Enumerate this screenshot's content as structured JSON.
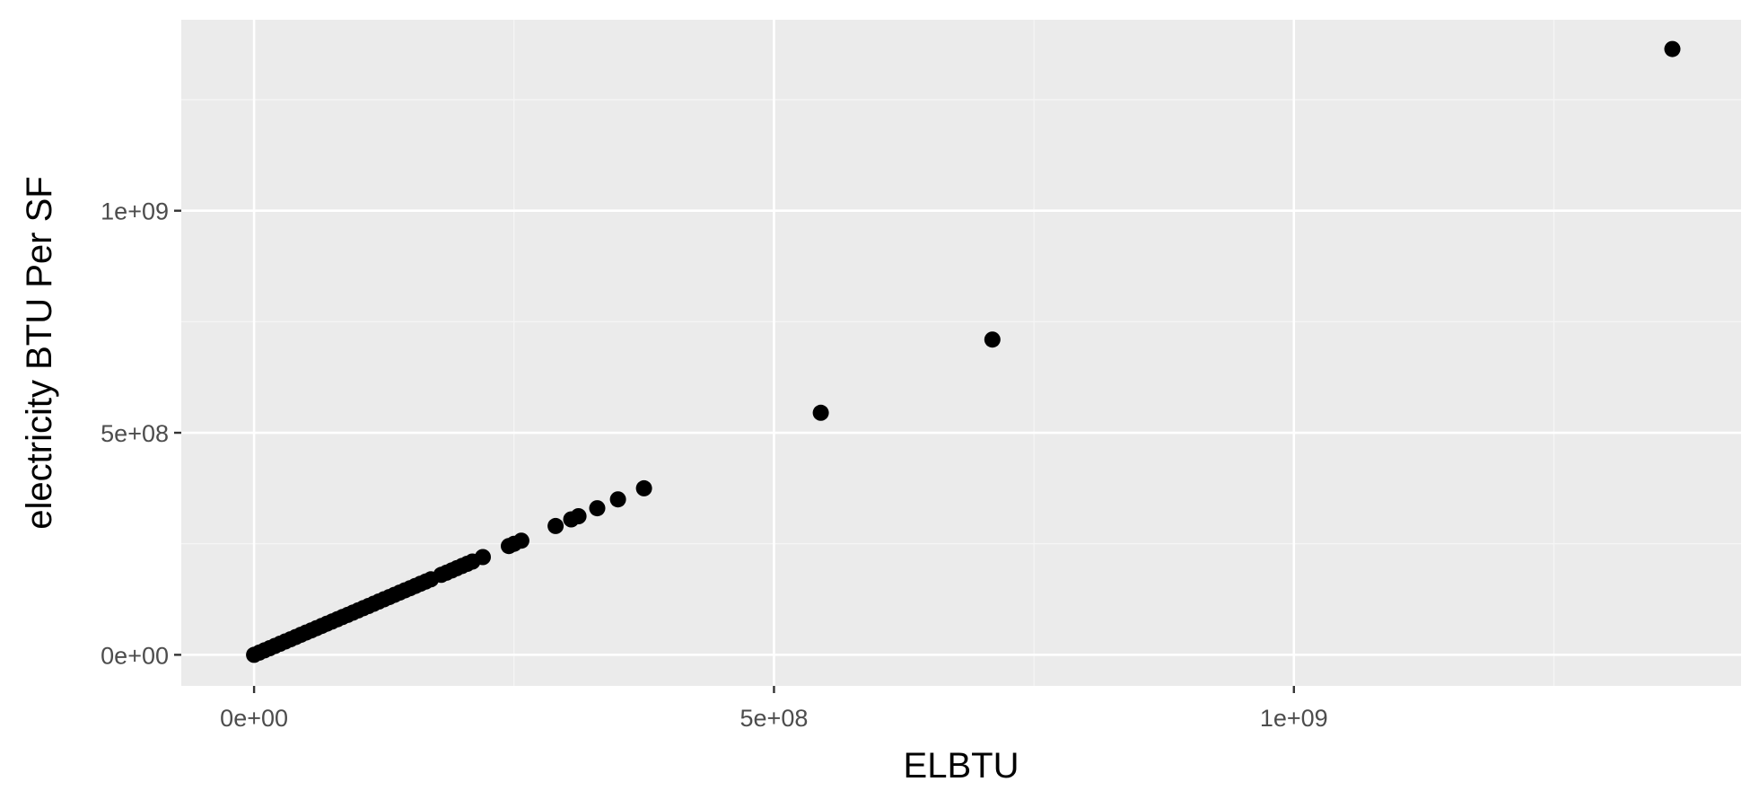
{
  "colors": {
    "panel_background": "#ebebeb",
    "grid_major": "#ffffff",
    "grid_minor": "#f5f5f5",
    "point": "#000000",
    "tick": "#333333",
    "tick_label": "#4d4d4d"
  },
  "chart_data": {
    "type": "scatter",
    "title": "",
    "xlabel": "ELBTU",
    "ylabel": "electricity BTU Per SF",
    "xlim": [
      -70000000,
      1430000000
    ],
    "ylim": [
      -70000000,
      1430000000
    ],
    "x_ticks": [
      {
        "value": 0,
        "label": "0e+00"
      },
      {
        "value": 500000000,
        "label": "5e+08"
      },
      {
        "value": 1000000000,
        "label": "1e+09"
      }
    ],
    "y_ticks": [
      {
        "value": 0,
        "label": "0e+00"
      },
      {
        "value": 500000000,
        "label": "5e+08"
      },
      {
        "value": 1000000000,
        "label": "1e+09"
      }
    ],
    "x_minor_breaks": [
      250000000,
      750000000,
      1250000000
    ],
    "y_minor_breaks": [
      250000000,
      750000000,
      1250000000
    ],
    "grid": true,
    "legend": "none",
    "series": [
      {
        "x": [
          0,
          5000000,
          10000000,
          15000000,
          20000000,
          25000000,
          30000000,
          35000000,
          40000000,
          45000000,
          50000000,
          55000000,
          60000000,
          65000000,
          70000000,
          75000000,
          80000000,
          85000000,
          90000000,
          95000000,
          100000000,
          105000000,
          110000000,
          115000000,
          120000000,
          125000000,
          130000000,
          135000000,
          140000000,
          145000000,
          150000000,
          155000000,
          160000000,
          165000000,
          170000000,
          180000000,
          185000000,
          190000000,
          195000000,
          200000000,
          205000000,
          210000000,
          220000000,
          245000000,
          250000000,
          257000000,
          290000000,
          305000000,
          312000000,
          330000000,
          350000000,
          375000000,
          545000000,
          710000000,
          1364000000
        ],
        "y": [
          0,
          5000000,
          10000000,
          15000000,
          20000000,
          25000000,
          30000000,
          35000000,
          40000000,
          45000000,
          50000000,
          55000000,
          60000000,
          65000000,
          70000000,
          75000000,
          80000000,
          85000000,
          90000000,
          95000000,
          100000000,
          105000000,
          110000000,
          115000000,
          120000000,
          125000000,
          130000000,
          135000000,
          140000000,
          145000000,
          150000000,
          155000000,
          160000000,
          165000000,
          170000000,
          180000000,
          185000000,
          190000000,
          195000000,
          200000000,
          205000000,
          210000000,
          220000000,
          245000000,
          250000000,
          257000000,
          290000000,
          305000000,
          312000000,
          330000000,
          350000000,
          375000000,
          545000000,
          710000000,
          1364000000
        ]
      }
    ]
  }
}
